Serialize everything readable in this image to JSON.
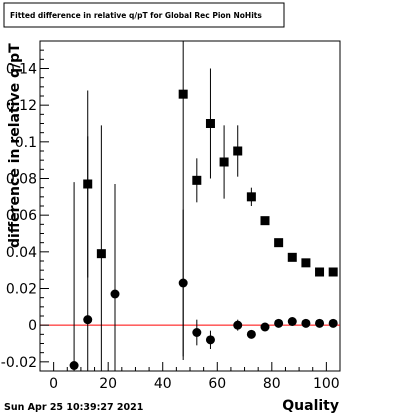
{
  "chart_data": {
    "type": "scatter",
    "title": "Fitted difference in relative q/pT for Global Rec Pion NoHits",
    "xlabel": "Quality",
    "ylabel": "difference in relative q/pT",
    "xlim": [
      -5,
      105
    ],
    "ylim": [
      -0.025,
      0.155
    ],
    "x_ticks": [
      0,
      20,
      40,
      60,
      80,
      100
    ],
    "y_ticks": [
      -0.02,
      0,
      0.02,
      0.04,
      0.06,
      0.08,
      0.1,
      0.12,
      0.14
    ],
    "grid": false,
    "reference_line": {
      "y": 0,
      "color": "#ff0000"
    },
    "series": [
      {
        "marker": "square",
        "color": "#000000",
        "points": [
          {
            "x": 12.5,
            "y": 0.077,
            "err": 0.051
          },
          {
            "x": 17.5,
            "y": 0.039,
            "err": 0.07
          },
          {
            "x": 47.5,
            "y": 0.126,
            "err": 0.145
          },
          {
            "x": 52.5,
            "y": 0.079,
            "err": 0.012
          },
          {
            "x": 57.5,
            "y": 0.11,
            "err": 0.03
          },
          {
            "x": 62.5,
            "y": 0.089,
            "err": 0.02
          },
          {
            "x": 67.5,
            "y": 0.095,
            "err": 0.014
          },
          {
            "x": 72.5,
            "y": 0.07,
            "err": 0.005
          },
          {
            "x": 77.5,
            "y": 0.057,
            "err": 0.002
          },
          {
            "x": 82.5,
            "y": 0.045,
            "err": 0.001
          },
          {
            "x": 87.5,
            "y": 0.037,
            "err": 0.001
          },
          {
            "x": 92.5,
            "y": 0.034,
            "err": 0.001
          },
          {
            "x": 97.5,
            "y": 0.029,
            "err": 0.001
          },
          {
            "x": 102.5,
            "y": 0.029,
            "err": 0.001
          }
        ]
      },
      {
        "marker": "circle",
        "color": "#000000",
        "points": [
          {
            "x": 7.5,
            "y": -0.022,
            "err": 0.1
          },
          {
            "x": 12.5,
            "y": 0.003,
            "err": 0.1
          },
          {
            "x": 22.5,
            "y": 0.017,
            "err": 0.06
          },
          {
            "x": 47.5,
            "y": 0.023,
            "err": 0.04
          },
          {
            "x": 52.5,
            "y": -0.004,
            "err": 0.007
          },
          {
            "x": 57.5,
            "y": -0.008,
            "err": 0.005
          },
          {
            "x": 67.5,
            "y": 0.0,
            "err": 0.003
          },
          {
            "x": 72.5,
            "y": -0.005,
            "err": 0.002
          },
          {
            "x": 77.5,
            "y": -0.001,
            "err": 0.001
          },
          {
            "x": 82.5,
            "y": 0.001,
            "err": 0.001
          },
          {
            "x": 87.5,
            "y": 0.002,
            "err": 0.001
          },
          {
            "x": 92.5,
            "y": 0.001,
            "err": 0.001
          },
          {
            "x": 97.5,
            "y": 0.001,
            "err": 0.001
          },
          {
            "x": 102.5,
            "y": 0.001,
            "err": 0.001
          }
        ]
      }
    ]
  },
  "footer": {
    "timestamp": "Sun Apr 25 10:39:27 2021"
  },
  "colors": {
    "background": "#ffffff",
    "reference_line": "#ff0000",
    "markers": "#000000"
  }
}
